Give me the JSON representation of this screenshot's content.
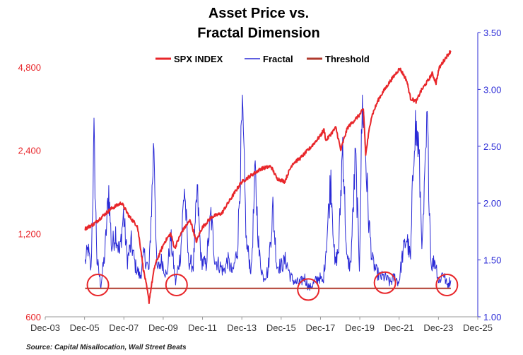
{
  "chart_data": {
    "type": "line",
    "title_lines": [
      "Asset Price vs.",
      "Fractal Dimension"
    ],
    "source": "Source: Capital Misallocation, Wall Street Beats",
    "x_ticks": [
      "Dec-03",
      "Dec-05",
      "Dec-07",
      "Dec-09",
      "Dec-11",
      "Dec-13",
      "Dec-15",
      "Dec-17",
      "Dec-19",
      "Dec-21",
      "Dec-23",
      "Dec-25"
    ],
    "x_range": [
      2003.92,
      2025.92
    ],
    "y_left": {
      "scale": "log",
      "range": [
        600,
        6400
      ],
      "ticks": [
        "600",
        "1,200",
        "2,400",
        "4,800"
      ],
      "color": "#e8262a"
    },
    "y_right": {
      "scale": "linear",
      "range": [
        1.0,
        3.5
      ],
      "ticks": [
        "1.00",
        "1.50",
        "2.00",
        "2.50",
        "3.00",
        "3.50"
      ],
      "color": "#2a2ad6"
    },
    "legend": {
      "position": "top-center",
      "items": [
        {
          "name": "SPX INDEX",
          "color": "#e8262a"
        },
        {
          "name": "Fractal",
          "color": "#2a2ad6"
        },
        {
          "name": "Threshold",
          "color": "#b03a2e"
        }
      ]
    },
    "series": [
      {
        "name": "SPX INDEX",
        "axis": "left",
        "color": "#e8262a",
        "points": [
          [
            2005.95,
            1250
          ],
          [
            2006.4,
            1300
          ],
          [
            2006.9,
            1400
          ],
          [
            2007.3,
            1480
          ],
          [
            2007.8,
            1550
          ],
          [
            2008.2,
            1380
          ],
          [
            2008.6,
            1280
          ],
          [
            2008.9,
            900
          ],
          [
            2009.2,
            680
          ],
          [
            2009.5,
            920
          ],
          [
            2010.0,
            1120
          ],
          [
            2010.3,
            1200
          ],
          [
            2010.5,
            1060
          ],
          [
            2010.9,
            1230
          ],
          [
            2011.3,
            1340
          ],
          [
            2011.6,
            1120
          ],
          [
            2011.9,
            1260
          ],
          [
            2012.4,
            1380
          ],
          [
            2012.9,
            1420
          ],
          [
            2013.4,
            1620
          ],
          [
            2013.9,
            1840
          ],
          [
            2014.4,
            1950
          ],
          [
            2014.9,
            2060
          ],
          [
            2015.4,
            2100
          ],
          [
            2015.7,
            1900
          ],
          [
            2016.1,
            1850
          ],
          [
            2016.5,
            2150
          ],
          [
            2016.9,
            2250
          ],
          [
            2017.4,
            2450
          ],
          [
            2017.9,
            2700
          ],
          [
            2018.1,
            2850
          ],
          [
            2018.2,
            2600
          ],
          [
            2018.7,
            2900
          ],
          [
            2018.95,
            2400
          ],
          [
            2019.3,
            2900
          ],
          [
            2019.9,
            3220
          ],
          [
            2020.1,
            3380
          ],
          [
            2020.22,
            2300
          ],
          [
            2020.5,
            3150
          ],
          [
            2020.9,
            3700
          ],
          [
            2021.4,
            4200
          ],
          [
            2021.95,
            4750
          ],
          [
            2022.3,
            4300
          ],
          [
            2022.5,
            3700
          ],
          [
            2022.8,
            3600
          ],
          [
            2023.0,
            3900
          ],
          [
            2023.4,
            4300
          ],
          [
            2023.6,
            4550
          ],
          [
            2023.8,
            4200
          ],
          [
            2023.95,
            4750
          ],
          [
            2024.3,
            5200
          ],
          [
            2024.55,
            5500
          ]
        ]
      },
      {
        "name": "Fractal",
        "axis": "right",
        "color": "#2a2ad6",
        "points": [
          [
            2005.95,
            1.48
          ],
          [
            2006.1,
            1.6
          ],
          [
            2006.25,
            1.4
          ],
          [
            2006.4,
            2.55
          ],
          [
            2006.55,
            1.5
          ],
          [
            2006.75,
            1.28
          ],
          [
            2006.95,
            1.55
          ],
          [
            2007.15,
            2.12
          ],
          [
            2007.3,
            1.6
          ],
          [
            2007.5,
            1.75
          ],
          [
            2007.7,
            1.55
          ],
          [
            2007.9,
            1.9
          ],
          [
            2008.1,
            1.5
          ],
          [
            2008.3,
            1.65
          ],
          [
            2008.5,
            1.45
          ],
          [
            2008.75,
            1.35
          ],
          [
            2008.95,
            1.55
          ],
          [
            2009.2,
            1.4
          ],
          [
            2009.45,
            2.55
          ],
          [
            2009.6,
            1.4
          ],
          [
            2009.85,
            1.5
          ],
          [
            2010.1,
            1.35
          ],
          [
            2010.3,
            1.7
          ],
          [
            2010.55,
            1.3
          ],
          [
            2010.8,
            1.55
          ],
          [
            2011.0,
            2.15
          ],
          [
            2011.2,
            1.5
          ],
          [
            2011.45,
            1.45
          ],
          [
            2011.65,
            2.1
          ],
          [
            2011.85,
            1.5
          ],
          [
            2012.1,
            1.45
          ],
          [
            2012.35,
            1.9
          ],
          [
            2012.55,
            1.5
          ],
          [
            2012.8,
            1.45
          ],
          [
            2013.0,
            1.4
          ],
          [
            2013.2,
            1.5
          ],
          [
            2013.45,
            1.38
          ],
          [
            2013.7,
            1.6
          ],
          [
            2013.95,
            2.8
          ],
          [
            2014.15,
            1.65
          ],
          [
            2014.4,
            1.4
          ],
          [
            2014.6,
            2.25
          ],
          [
            2014.8,
            1.55
          ],
          [
            2015.0,
            1.35
          ],
          [
            2015.25,
            1.4
          ],
          [
            2015.5,
            1.95
          ],
          [
            2015.7,
            1.45
          ],
          [
            2015.95,
            1.45
          ],
          [
            2016.15,
            1.5
          ],
          [
            2016.4,
            1.35
          ],
          [
            2016.65,
            1.3
          ],
          [
            2016.9,
            1.3
          ],
          [
            2017.1,
            1.35
          ],
          [
            2017.35,
            1.25
          ],
          [
            2017.6,
            1.3
          ],
          [
            2017.85,
            1.35
          ],
          [
            2018.05,
            1.3
          ],
          [
            2018.25,
            1.7
          ],
          [
            2018.45,
            2.25
          ],
          [
            2018.65,
            1.45
          ],
          [
            2018.85,
            1.6
          ],
          [
            2019.05,
            2.55
          ],
          [
            2019.25,
            1.5
          ],
          [
            2019.45,
            1.45
          ],
          [
            2019.7,
            2.4
          ],
          [
            2019.9,
            1.45
          ],
          [
            2020.05,
            2.95
          ],
          [
            2020.2,
            2.5
          ],
          [
            2020.35,
            1.9
          ],
          [
            2020.55,
            1.5
          ],
          [
            2020.75,
            1.4
          ],
          [
            2020.95,
            1.35
          ],
          [
            2021.2,
            1.35
          ],
          [
            2021.45,
            1.3
          ],
          [
            2021.7,
            1.35
          ],
          [
            2021.9,
            1.3
          ],
          [
            2022.1,
            1.55
          ],
          [
            2022.3,
            1.7
          ],
          [
            2022.5,
            1.5
          ],
          [
            2022.7,
            2.7
          ],
          [
            2022.9,
            2.5
          ],
          [
            2023.1,
            1.6
          ],
          [
            2023.35,
            2.7
          ],
          [
            2023.55,
            1.45
          ],
          [
            2023.75,
            1.5
          ],
          [
            2023.95,
            1.3
          ],
          [
            2024.15,
            1.4
          ],
          [
            2024.35,
            1.28
          ],
          [
            2024.55,
            1.32
          ]
        ]
      },
      {
        "name": "Threshold",
        "axis": "right",
        "color": "#b03a2e",
        "points": [
          [
            2005.95,
            1.25
          ],
          [
            2024.55,
            1.25
          ]
        ]
      }
    ],
    "highlight_circles": [
      {
        "x": 2006.6,
        "y_right": 1.28,
        "color": "#e8262a"
      },
      {
        "x": 2010.6,
        "y_right": 1.28,
        "color": "#e8262a"
      },
      {
        "x": 2017.3,
        "y_right": 1.24,
        "color": "#e8262a"
      },
      {
        "x": 2021.2,
        "y_right": 1.3,
        "color": "#e8262a"
      },
      {
        "x": 2024.35,
        "y_right": 1.28,
        "color": "#e8262a"
      }
    ]
  }
}
